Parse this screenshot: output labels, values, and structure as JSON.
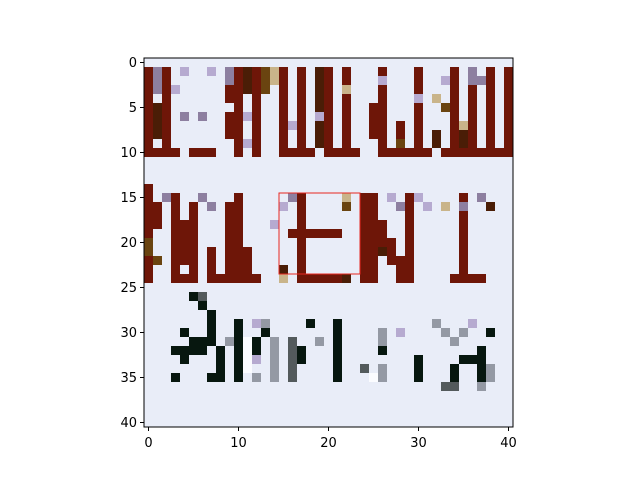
{
  "chart_data": {
    "type": "heatmap",
    "title": "",
    "xlabel": "",
    "ylabel": "",
    "xlim": [
      -0.5,
      40.5
    ],
    "ylim": [
      40.5,
      -0.5
    ],
    "x_ticks": [
      "0",
      "10",
      "20",
      "30",
      "40"
    ],
    "y_ticks": [
      "0",
      "5",
      "10",
      "15",
      "20",
      "25",
      "30",
      "35",
      "40"
    ],
    "grid": false,
    "background_color": "#e9edf8",
    "highlight_rect": {
      "x0": 14.5,
      "y0": 14.5,
      "x1": 23.5,
      "y1": 23.5,
      "color": "#e8261f"
    },
    "palette": {
      "red_brown": "#6e1608",
      "dark_brown": "#4a1d06",
      "olive_brown": "#6a4410",
      "tan": "#c9b48a",
      "lilac": "#b6aad0",
      "purple_gray": "#8d7fa0",
      "black_green": "#07170f",
      "dark_gray": "#535a5c",
      "mid_gray": "#9499a4",
      "white": "#fbfcff"
    },
    "marks": [
      {
        "color": "red_brown",
        "rects": [
          [
            0,
            1,
            1,
            10
          ],
          [
            2,
            1,
            1,
            10
          ],
          [
            1,
            10,
            3,
            1
          ],
          [
            5,
            10,
            3,
            1
          ],
          [
            10,
            1,
            1,
            10
          ],
          [
            9,
            3,
            1,
            2
          ],
          [
            9,
            6,
            1,
            3
          ],
          [
            12,
            1,
            1,
            10
          ],
          [
            15,
            1,
            1,
            10
          ],
          [
            17,
            1,
            1,
            10
          ],
          [
            15,
            10,
            4,
            1
          ],
          [
            20,
            1,
            1,
            10
          ],
          [
            22,
            1,
            1,
            10
          ],
          [
            21,
            10,
            3,
            1
          ],
          [
            26,
            1,
            1,
            10
          ],
          [
            25,
            5,
            1,
            4
          ],
          [
            28,
            7,
            1,
            3
          ],
          [
            27,
            10,
            5,
            1
          ],
          [
            30,
            1,
            1,
            10
          ],
          [
            34,
            1,
            1,
            10
          ],
          [
            33,
            10,
            5,
            1
          ],
          [
            36,
            3,
            1,
            7
          ],
          [
            38,
            1,
            1,
            10
          ],
          [
            40,
            1,
            1,
            10
          ],
          [
            37,
            10,
            4,
            1
          ]
        ]
      },
      {
        "color": "dark_brown",
        "rects": [
          [
            1,
            5,
            1,
            4
          ],
          [
            11,
            1,
            1,
            3
          ],
          [
            19,
            1,
            1,
            9
          ],
          [
            32,
            8,
            1,
            2
          ],
          [
            35,
            8,
            1,
            2
          ]
        ]
      },
      {
        "color": "olive_brown",
        "rects": [
          [
            13,
            1,
            1,
            3
          ],
          [
            28,
            9,
            1,
            1
          ],
          [
            33,
            5,
            1,
            1
          ]
        ]
      },
      {
        "color": "tan",
        "rects": [
          [
            14,
            1,
            1,
            2
          ],
          [
            32,
            4,
            1,
            1
          ],
          [
            22,
            3,
            1,
            1
          ],
          [
            35,
            7,
            1,
            1
          ]
        ]
      },
      {
        "color": "lilac",
        "rects": [
          [
            4,
            1,
            1,
            1
          ],
          [
            7,
            1,
            1,
            1
          ],
          [
            3,
            3,
            1,
            1
          ],
          [
            11,
            6,
            1,
            1
          ],
          [
            11,
            9,
            1,
            1
          ],
          [
            26,
            2,
            1,
            1
          ],
          [
            30,
            4,
            1,
            1
          ],
          [
            33,
            2,
            1,
            1
          ],
          [
            16,
            7,
            1,
            1
          ],
          [
            19,
            6,
            1,
            1
          ]
        ]
      },
      {
        "color": "purple_gray",
        "rects": [
          [
            1,
            1,
            1,
            3
          ],
          [
            4,
            6,
            1,
            1
          ],
          [
            6,
            6,
            1,
            1
          ],
          [
            9,
            1,
            1,
            2
          ],
          [
            36,
            1,
            1,
            2
          ],
          [
            37,
            2,
            1,
            1
          ]
        ]
      },
      {
        "color": "red_brown",
        "rects": [
          [
            0,
            14,
            1,
            11
          ],
          [
            1,
            16,
            1,
            3
          ],
          [
            3,
            15,
            1,
            10
          ],
          [
            4,
            18,
            1,
            5
          ],
          [
            5,
            16,
            1,
            9
          ],
          [
            3,
            24,
            3,
            1
          ],
          [
            7,
            21,
            1,
            4
          ],
          [
            8,
            24,
            1,
            1
          ],
          [
            9,
            16,
            1,
            9
          ],
          [
            10,
            15,
            1,
            10
          ],
          [
            11,
            21,
            1,
            4
          ],
          [
            12,
            24,
            1,
            1
          ],
          [
            17,
            15,
            1,
            10
          ],
          [
            16,
            19,
            1,
            1
          ],
          [
            18,
            19,
            1,
            1
          ],
          [
            19,
            19,
            1,
            1
          ],
          [
            20,
            19,
            2,
            1
          ],
          [
            18,
            24,
            4,
            1
          ],
          [
            24,
            15,
            1,
            10
          ],
          [
            25,
            15,
            1,
            10
          ],
          [
            26,
            18,
            1,
            3
          ],
          [
            27,
            20,
            1,
            3
          ],
          [
            28,
            22,
            1,
            3
          ],
          [
            29,
            15,
            1,
            10
          ],
          [
            35,
            15,
            1,
            10
          ],
          [
            34,
            24,
            4,
            1
          ]
        ]
      },
      {
        "color": "dark_brown",
        "rects": [
          [
            15,
            23,
            1,
            1
          ],
          [
            22,
            24,
            1,
            1
          ],
          [
            38,
            16,
            1,
            1
          ],
          [
            26,
            21,
            1,
            1
          ]
        ]
      },
      {
        "color": "olive_brown",
        "rects": [
          [
            0,
            20,
            1,
            2
          ],
          [
            22,
            16,
            1,
            1
          ],
          [
            1,
            22,
            1,
            1
          ]
        ]
      },
      {
        "color": "tan",
        "rects": [
          [
            22,
            15,
            1,
            1
          ],
          [
            15,
            24,
            1,
            1
          ],
          [
            33,
            16,
            1,
            1
          ]
        ]
      },
      {
        "color": "lilac",
        "rects": [
          [
            15,
            16,
            1,
            1
          ],
          [
            27,
            15,
            1,
            1
          ],
          [
            30,
            15,
            1,
            1
          ],
          [
            31,
            16,
            1,
            1
          ],
          [
            14,
            18,
            1,
            1
          ]
        ]
      },
      {
        "color": "purple_gray",
        "rects": [
          [
            2,
            15,
            1,
            1
          ],
          [
            6,
            15,
            1,
            1
          ],
          [
            7,
            16,
            1,
            1
          ],
          [
            16,
            15,
            1,
            1
          ],
          [
            28,
            16,
            1,
            1
          ],
          [
            35,
            16,
            1,
            1
          ],
          [
            37,
            15,
            1,
            1
          ]
        ]
      },
      {
        "color": "black_green",
        "rects": [
          [
            5,
            26,
            2,
            1
          ],
          [
            6,
            27,
            1,
            1
          ],
          [
            7,
            28,
            1,
            4
          ],
          [
            4,
            30,
            1,
            1
          ],
          [
            5,
            31,
            2,
            1
          ],
          [
            3,
            32,
            4,
            1
          ],
          [
            4,
            33,
            1,
            1
          ],
          [
            8,
            32,
            1,
            4
          ],
          [
            7,
            35,
            1,
            1
          ],
          [
            3,
            35,
            1,
            1
          ],
          [
            10,
            29,
            1,
            7
          ],
          [
            13,
            30,
            1,
            1
          ],
          [
            12,
            31,
            1,
            2
          ],
          [
            17,
            32,
            1,
            2
          ],
          [
            18,
            29,
            1,
            1
          ],
          [
            21,
            29,
            1,
            7
          ],
          [
            26,
            32,
            1,
            1
          ],
          [
            30,
            33,
            1,
            3
          ],
          [
            38,
            30,
            1,
            1
          ],
          [
            37,
            32,
            1,
            4
          ],
          [
            35,
            33,
            2,
            1
          ],
          [
            34,
            34,
            1,
            2
          ]
        ]
      },
      {
        "color": "dark_gray",
        "rects": [
          [
            6,
            26,
            1,
            1
          ],
          [
            16,
            31,
            1,
            3
          ],
          [
            16,
            34,
            1,
            2
          ],
          [
            33,
            36,
            2,
            1
          ],
          [
            24,
            34,
            1,
            1
          ]
        ]
      },
      {
        "color": "mid_gray",
        "rects": [
          [
            14,
            31,
            1,
            3
          ],
          [
            14,
            34,
            1,
            2
          ],
          [
            13,
            29,
            1,
            1
          ],
          [
            26,
            30,
            1,
            2
          ],
          [
            26,
            34,
            1,
            2
          ],
          [
            19,
            31,
            1,
            1
          ],
          [
            32,
            29,
            1,
            1
          ],
          [
            33,
            30,
            1,
            1
          ],
          [
            34,
            31,
            1,
            1
          ],
          [
            38,
            34,
            1,
            2
          ],
          [
            37,
            36,
            1,
            1
          ],
          [
            35,
            30,
            1,
            1
          ],
          [
            9,
            31,
            1,
            1
          ],
          [
            11,
            34,
            1,
            1
          ],
          [
            12,
            35,
            1,
            1
          ]
        ]
      },
      {
        "color": "white",
        "rects": [
          [
            10,
            29,
            0,
            0
          ],
          [
            11,
            31,
            1,
            4
          ],
          [
            25,
            35,
            1,
            1
          ]
        ]
      },
      {
        "color": "lilac",
        "rects": [
          [
            12,
            29,
            1,
            1
          ],
          [
            36,
            29,
            1,
            1
          ],
          [
            28,
            30,
            1,
            1
          ],
          [
            12,
            33,
            1,
            1
          ]
        ]
      }
    ]
  }
}
